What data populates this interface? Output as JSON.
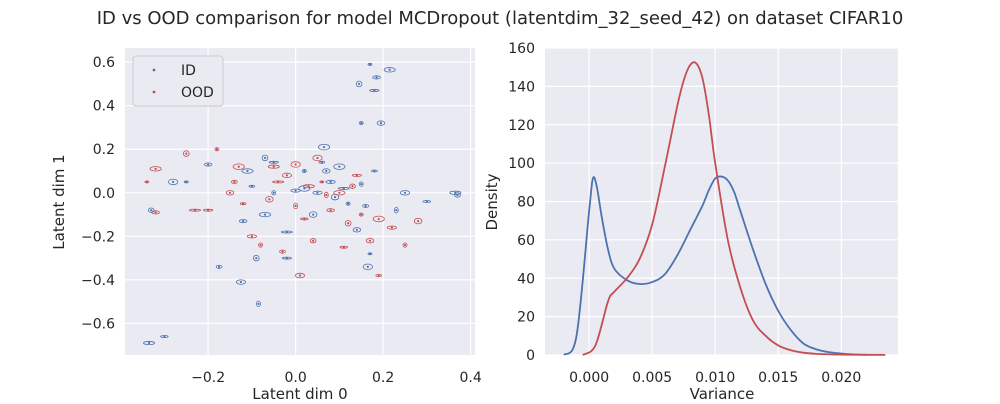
{
  "figure": {
    "title": "ID vs OOD comparison for model MCDropout (latentdim_32_seed_42) on dataset CIFAR10"
  },
  "colors": {
    "id": "#4c72b0",
    "ood": "#c44e52",
    "panel_bg": "#eaeaf2",
    "grid": "#ffffff"
  },
  "chart_data": [
    {
      "type": "scatter",
      "xlabel": "Latent dim 0",
      "ylabel": "Latent dim 1",
      "xlim": [
        -0.39,
        0.41
      ],
      "ylim": [
        -0.745,
        0.665
      ],
      "xticks": [
        -0.2,
        0.0,
        0.2,
        0.4
      ],
      "xtick_labels": [
        "−0.2",
        "0.0",
        "0.2",
        "0.4"
      ],
      "yticks": [
        -0.6,
        -0.4,
        -0.2,
        0.0,
        0.2,
        0.4,
        0.6
      ],
      "ytick_labels": [
        "−0.6",
        "−0.4",
        "−0.2",
        "0.0",
        "0.2",
        "0.4",
        "0.6"
      ],
      "grid": true,
      "legend": {
        "placement": "upper-left",
        "entries": [
          "ID",
          "OOD"
        ]
      },
      "series": [
        {
          "name": "ID",
          "points": [
            [
              0.17,
              0.59
            ],
            [
              0.185,
              0.53
            ],
            [
              0.215,
              0.565
            ],
            [
              0.145,
              0.5
            ],
            [
              0.18,
              0.47
            ],
            [
              0.15,
              0.32
            ],
            [
              0.195,
              0.32
            ],
            [
              0.065,
              0.21
            ],
            [
              0.06,
              0.14
            ],
            [
              0.0,
              0.01
            ],
            [
              0.15,
              0.04
            ],
            [
              0.04,
              -0.1
            ],
            [
              -0.02,
              -0.18
            ],
            [
              -0.175,
              -0.34
            ],
            [
              -0.125,
              -0.41
            ],
            [
              -0.085,
              -0.51
            ],
            [
              -0.3,
              -0.66
            ],
            [
              -0.335,
              -0.69
            ],
            [
              -0.33,
              -0.08
            ],
            [
              -0.28,
              0.05
            ],
            [
              -0.25,
              0.05
            ],
            [
              -0.2,
              0.13
            ],
            [
              -0.11,
              0.1
            ],
            [
              -0.07,
              0.16
            ],
            [
              -0.05,
              0.14
            ],
            [
              0.02,
              0.1
            ],
            [
              0.07,
              0.1
            ],
            [
              0.1,
              0.12
            ],
            [
              0.18,
              0.1
            ],
            [
              0.05,
              0.0
            ],
            [
              -0.05,
              0.0
            ],
            [
              0.09,
              -0.02
            ],
            [
              0.11,
              0.02
            ],
            [
              0.16,
              -0.06
            ],
            [
              0.25,
              0.0
            ],
            [
              0.23,
              -0.08
            ],
            [
              0.3,
              -0.04
            ],
            [
              0.365,
              0.0
            ],
            [
              0.37,
              -0.01
            ],
            [
              0.165,
              -0.34
            ],
            [
              0.17,
              -0.28
            ],
            [
              -0.12,
              -0.13
            ],
            [
              -0.07,
              -0.1
            ],
            [
              -0.09,
              -0.3
            ],
            [
              -0.02,
              -0.3
            ],
            [
              0.12,
              -0.05
            ],
            [
              0.14,
              -0.17
            ],
            [
              0.02,
              0.02
            ],
            [
              -0.1,
              0.03
            ],
            [
              0.08,
              0.05
            ]
          ]
        },
        {
          "name": "OOD",
          "points": [
            [
              -0.34,
              0.05
            ],
            [
              -0.32,
              -0.09
            ],
            [
              -0.32,
              0.11
            ],
            [
              -0.25,
              0.18
            ],
            [
              -0.2,
              -0.08
            ],
            [
              -0.18,
              0.2
            ],
            [
              -0.15,
              0.0
            ],
            [
              -0.13,
              0.12
            ],
            [
              -0.12,
              -0.05
            ],
            [
              -0.1,
              -0.2
            ],
            [
              -0.08,
              -0.24
            ],
            [
              -0.06,
              -0.03
            ],
            [
              -0.04,
              0.05
            ],
            [
              -0.03,
              -0.27
            ],
            [
              -0.02,
              0.08
            ],
            [
              0.0,
              -0.06
            ],
            [
              0.02,
              -0.12
            ],
            [
              0.03,
              0.03
            ],
            [
              0.04,
              -0.22
            ],
            [
              0.05,
              0.16
            ],
            [
              0.06,
              0.05
            ],
            [
              0.08,
              -0.08
            ],
            [
              0.1,
              0.0
            ],
            [
              0.12,
              -0.14
            ],
            [
              0.14,
              0.08
            ],
            [
              0.15,
              -0.1
            ],
            [
              0.17,
              -0.22
            ],
            [
              0.19,
              -0.12
            ],
            [
              0.19,
              -0.38
            ],
            [
              0.22,
              -0.16
            ],
            [
              0.25,
              -0.24
            ],
            [
              0.28,
              -0.13
            ],
            [
              -0.23,
              -0.08
            ],
            [
              -0.14,
              0.05
            ],
            [
              0.01,
              -0.38
            ],
            [
              0.07,
              -0.01
            ],
            [
              0.11,
              -0.25
            ],
            [
              -0.05,
              0.12
            ],
            [
              0.13,
              0.03
            ],
            [
              0.0,
              0.13
            ]
          ]
        }
      ]
    },
    {
      "type": "line",
      "xlabel": "Variance",
      "ylabel": "Density",
      "xlim": [
        -0.0035,
        0.0245
      ],
      "ylim": [
        0,
        160
      ],
      "xticks": [
        0.0,
        0.005,
        0.01,
        0.015,
        0.02
      ],
      "xtick_labels": [
        "0.000",
        "0.005",
        "0.010",
        "0.015",
        "0.020"
      ],
      "yticks": [
        0,
        20,
        40,
        60,
        80,
        100,
        120,
        140,
        160
      ],
      "ytick_labels": [
        "0",
        "20",
        "40",
        "60",
        "80",
        "100",
        "120",
        "140",
        "160"
      ],
      "grid": true,
      "series": [
        {
          "name": "",
          "x": [
            -0.002,
            -0.001,
            0.0,
            0.0003,
            0.0006,
            0.001,
            0.0015,
            0.002,
            0.003,
            0.004,
            0.005,
            0.006,
            0.007,
            0.008,
            0.009,
            0.0095,
            0.01,
            0.0105,
            0.011,
            0.0115,
            0.012,
            0.013,
            0.014,
            0.015,
            0.016,
            0.017,
            0.018,
            0.019,
            0.02,
            0.021,
            0.022
          ],
          "y": [
            0,
            10,
            75,
            92,
            88,
            72,
            55,
            45,
            39,
            37,
            38,
            42,
            52,
            65,
            78,
            86,
            92,
            93,
            91,
            85,
            75,
            55,
            37,
            23,
            13,
            6,
            3,
            1.5,
            0.8,
            0.3,
            0.1
          ]
        },
        {
          "name": "",
          "x": [
            -0.0005,
            0.0005,
            0.0015,
            0.002,
            0.003,
            0.004,
            0.005,
            0.006,
            0.007,
            0.0075,
            0.008,
            0.0085,
            0.009,
            0.0095,
            0.01,
            0.011,
            0.012,
            0.013,
            0.014,
            0.015,
            0.016,
            0.017,
            0.018,
            0.02,
            0.022,
            0.0235
          ],
          "y": [
            0,
            5,
            28,
            33,
            40,
            50,
            68,
            98,
            130,
            143,
            151,
            152,
            144,
            125,
            100,
            60,
            35,
            18,
            10,
            5,
            2.5,
            1.2,
            0.6,
            0.2,
            0.1,
            0.05
          ]
        }
      ]
    }
  ]
}
